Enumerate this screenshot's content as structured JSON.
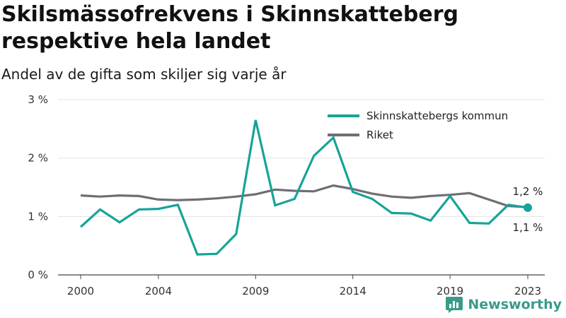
{
  "title": "Skilsmässofrekvens i Skinnskatteberg respektive hela landet",
  "subtitle": "Andel av de gifta som skiljer sig varje år",
  "brand": {
    "name": "Newsworthy",
    "icon": "bar-chart-logo-icon",
    "color": "#3a9a8b"
  },
  "chart_data": {
    "type": "line",
    "x": [
      2000,
      2001,
      2002,
      2003,
      2004,
      2005,
      2006,
      2007,
      2008,
      2009,
      2010,
      2011,
      2012,
      2013,
      2014,
      2015,
      2016,
      2017,
      2018,
      2019,
      2020,
      2021,
      2022,
      2023
    ],
    "xticks": [
      2000,
      2004,
      2009,
      2014,
      2019,
      2023
    ],
    "ylim": [
      0,
      3
    ],
    "yticks": [
      0,
      1,
      2,
      3
    ],
    "ytick_labels": [
      "0 %",
      "1 %",
      "2 %",
      "3 %"
    ],
    "grid": true,
    "legend_position": "top-right",
    "series": [
      {
        "name": "Skinnskattebergs kommun",
        "color": "#17a398",
        "values": [
          0.82,
          1.12,
          0.9,
          1.12,
          1.13,
          1.2,
          0.35,
          0.36,
          0.7,
          2.65,
          1.19,
          1.3,
          2.04,
          2.35,
          1.42,
          1.3,
          1.06,
          1.05,
          0.93,
          1.35,
          0.89,
          0.88,
          1.2,
          1.15
        ],
        "end_label": "1,1 %"
      },
      {
        "name": "Riket",
        "color": "#6e6e73",
        "values": [
          1.36,
          1.34,
          1.36,
          1.35,
          1.29,
          1.28,
          1.29,
          1.31,
          1.34,
          1.38,
          1.46,
          1.44,
          1.43,
          1.53,
          1.47,
          1.39,
          1.34,
          1.32,
          1.35,
          1.37,
          1.4,
          1.29,
          1.18,
          1.16
        ],
        "end_label": "1,2 %"
      }
    ]
  }
}
